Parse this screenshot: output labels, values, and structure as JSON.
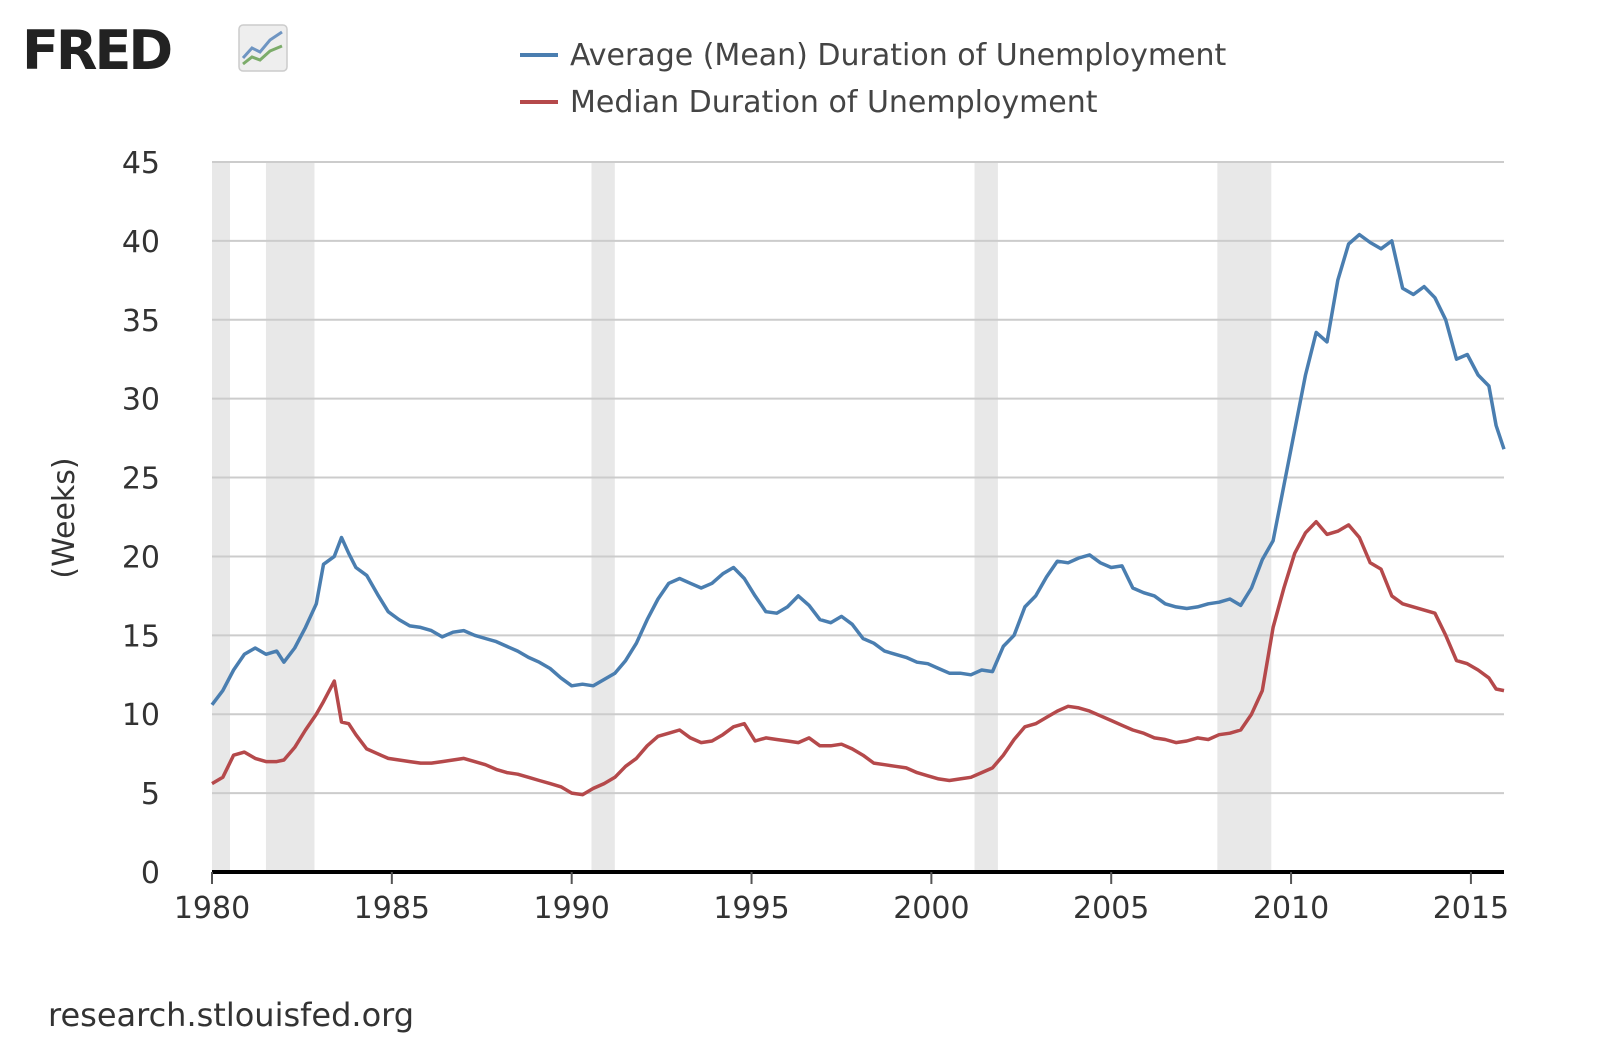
{
  "branding": {
    "logo_text": "FRED",
    "logo_icon": "line-chart-icon",
    "source_text": "research.stlouisfed.org"
  },
  "colors": {
    "mean": "#4a7eb0",
    "median": "#b5494b",
    "recession": "#e8e8e8",
    "grid": "#cccccc",
    "axis": "#000000"
  },
  "chart_data": {
    "type": "line",
    "xlabel": "",
    "ylabel": "(Weeks)",
    "xlim": [
      1980,
      2015.92
    ],
    "ylim": [
      0,
      45
    ],
    "x_ticks": [
      1980,
      1985,
      1990,
      1995,
      2000,
      2005,
      2010,
      2015
    ],
    "y_ticks": [
      0,
      5,
      10,
      15,
      20,
      25,
      30,
      35,
      40,
      45
    ],
    "grid": true,
    "legend_position": "top",
    "recessions": [
      [
        1980.0,
        1980.5
      ],
      [
        1981.5,
        1982.85
      ],
      [
        1990.55,
        1991.2
      ],
      [
        2001.2,
        2001.85
      ],
      [
        2007.95,
        2009.45
      ]
    ],
    "series": [
      {
        "name": "Average (Mean) Duration of Unemployment",
        "color": "#4a7eb0",
        "x": [
          1980.0,
          1980.3,
          1980.6,
          1980.9,
          1981.2,
          1981.5,
          1981.8,
          1982.0,
          1982.3,
          1982.6,
          1982.9,
          1983.1,
          1983.4,
          1983.6,
          1983.8,
          1984.0,
          1984.3,
          1984.6,
          1984.9,
          1985.2,
          1985.5,
          1985.8,
          1986.1,
          1986.4,
          1986.7,
          1987.0,
          1987.3,
          1987.6,
          1987.9,
          1988.2,
          1988.5,
          1988.8,
          1989.1,
          1989.4,
          1989.7,
          1990.0,
          1990.3,
          1990.6,
          1990.9,
          1991.2,
          1991.5,
          1991.8,
          1992.1,
          1992.4,
          1992.7,
          1993.0,
          1993.3,
          1993.6,
          1993.9,
          1994.2,
          1994.5,
          1994.8,
          1995.1,
          1995.4,
          1995.7,
          1996.0,
          1996.3,
          1996.6,
          1996.9,
          1997.2,
          1997.5,
          1997.8,
          1998.1,
          1998.4,
          1998.7,
          1999.0,
          1999.3,
          1999.6,
          1999.9,
          2000.2,
          2000.5,
          2000.8,
          2001.1,
          2001.4,
          2001.7,
          2002.0,
          2002.3,
          2002.6,
          2002.9,
          2003.2,
          2003.5,
          2003.8,
          2004.1,
          2004.4,
          2004.7,
          2005.0,
          2005.3,
          2005.6,
          2005.9,
          2006.2,
          2006.5,
          2006.8,
          2007.1,
          2007.4,
          2007.7,
          2008.0,
          2008.3,
          2008.6,
          2008.9,
          2009.2,
          2009.5,
          2009.8,
          2010.1,
          2010.4,
          2010.7,
          2011.0,
          2011.3,
          2011.6,
          2011.9,
          2012.2,
          2012.5,
          2012.8,
          2013.1,
          2013.4,
          2013.7,
          2014.0,
          2014.3,
          2014.6,
          2014.9,
          2015.2,
          2015.5,
          2015.7,
          2015.92
        ],
        "values": [
          10.6,
          11.5,
          12.8,
          13.8,
          14.2,
          13.8,
          14.0,
          13.3,
          14.2,
          15.5,
          17.0,
          19.5,
          20.0,
          21.2,
          20.2,
          19.3,
          18.8,
          17.6,
          16.5,
          16.0,
          15.6,
          15.5,
          15.3,
          14.9,
          15.2,
          15.3,
          15.0,
          14.8,
          14.6,
          14.3,
          14.0,
          13.6,
          13.3,
          12.9,
          12.3,
          11.8,
          11.9,
          11.8,
          12.2,
          12.6,
          13.4,
          14.5,
          16.0,
          17.3,
          18.3,
          18.6,
          18.3,
          18.0,
          18.3,
          18.9,
          19.3,
          18.6,
          17.5,
          16.5,
          16.4,
          16.8,
          17.5,
          16.9,
          16.0,
          15.8,
          16.2,
          15.7,
          14.8,
          14.5,
          14.0,
          13.8,
          13.6,
          13.3,
          13.2,
          12.9,
          12.6,
          12.6,
          12.5,
          12.8,
          12.7,
          14.3,
          15.0,
          16.8,
          17.5,
          18.7,
          19.7,
          19.6,
          19.9,
          20.1,
          19.6,
          19.3,
          19.4,
          18.0,
          17.7,
          17.5,
          17.0,
          16.8,
          16.7,
          16.8,
          17.0,
          17.1,
          17.3,
          16.9,
          18.0,
          19.8,
          21.0,
          24.5,
          28.0,
          31.5,
          34.2,
          33.6,
          37.5,
          39.8,
          40.4,
          39.9,
          39.5,
          40.0,
          37.0,
          36.6,
          37.1,
          36.4,
          35.0,
          32.5,
          32.8,
          31.5,
          30.8,
          28.3,
          26.8
        ]
      },
      {
        "name": "Median Duration of Unemployment",
        "color": "#b5494b",
        "x": [
          1980.0,
          1980.3,
          1980.6,
          1980.9,
          1981.2,
          1981.5,
          1981.8,
          1982.0,
          1982.3,
          1982.6,
          1982.9,
          1983.1,
          1983.4,
          1983.6,
          1983.8,
          1984.0,
          1984.3,
          1984.6,
          1984.9,
          1985.2,
          1985.5,
          1985.8,
          1986.1,
          1986.4,
          1986.7,
          1987.0,
          1987.3,
          1987.6,
          1987.9,
          1988.2,
          1988.5,
          1988.8,
          1989.1,
          1989.4,
          1989.7,
          1990.0,
          1990.3,
          1990.6,
          1990.9,
          1991.2,
          1991.5,
          1991.8,
          1992.1,
          1992.4,
          1992.7,
          1993.0,
          1993.3,
          1993.6,
          1993.9,
          1994.2,
          1994.5,
          1994.8,
          1995.1,
          1995.4,
          1995.7,
          1996.0,
          1996.3,
          1996.6,
          1996.9,
          1997.2,
          1997.5,
          1997.8,
          1998.1,
          1998.4,
          1998.7,
          1999.0,
          1999.3,
          1999.6,
          1999.9,
          2000.2,
          2000.5,
          2000.8,
          2001.1,
          2001.4,
          2001.7,
          2002.0,
          2002.3,
          2002.6,
          2002.9,
          2003.2,
          2003.5,
          2003.8,
          2004.1,
          2004.4,
          2004.7,
          2005.0,
          2005.3,
          2005.6,
          2005.9,
          2006.2,
          2006.5,
          2006.8,
          2007.1,
          2007.4,
          2007.7,
          2008.0,
          2008.3,
          2008.6,
          2008.9,
          2009.2,
          2009.5,
          2009.8,
          2010.1,
          2010.4,
          2010.7,
          2011.0,
          2011.3,
          2011.6,
          2011.9,
          2012.2,
          2012.5,
          2012.8,
          2013.1,
          2013.4,
          2013.7,
          2014.0,
          2014.3,
          2014.6,
          2014.9,
          2015.2,
          2015.5,
          2015.7,
          2015.92
        ],
        "values": [
          5.6,
          6.0,
          7.4,
          7.6,
          7.2,
          7.0,
          7.0,
          7.1,
          7.9,
          9.0,
          10.0,
          10.8,
          12.1,
          9.5,
          9.4,
          8.7,
          7.8,
          7.5,
          7.2,
          7.1,
          7.0,
          6.9,
          6.9,
          7.0,
          7.1,
          7.2,
          7.0,
          6.8,
          6.5,
          6.3,
          6.2,
          6.0,
          5.8,
          5.6,
          5.4,
          5.0,
          4.9,
          5.3,
          5.6,
          6.0,
          6.7,
          7.2,
          8.0,
          8.6,
          8.8,
          9.0,
          8.5,
          8.2,
          8.3,
          8.7,
          9.2,
          9.4,
          8.3,
          8.5,
          8.4,
          8.3,
          8.2,
          8.5,
          8.0,
          8.0,
          8.1,
          7.8,
          7.4,
          6.9,
          6.8,
          6.7,
          6.6,
          6.3,
          6.1,
          5.9,
          5.8,
          5.9,
          6.0,
          6.3,
          6.6,
          7.4,
          8.4,
          9.2,
          9.4,
          9.8,
          10.2,
          10.5,
          10.4,
          10.2,
          9.9,
          9.6,
          9.3,
          9.0,
          8.8,
          8.5,
          8.4,
          8.2,
          8.3,
          8.5,
          8.4,
          8.7,
          8.8,
          9.0,
          10.0,
          11.5,
          15.5,
          18.0,
          20.2,
          21.5,
          22.2,
          21.4,
          21.6,
          22.0,
          21.2,
          19.6,
          19.2,
          17.5,
          17.0,
          16.8,
          16.6,
          16.4,
          15.0,
          13.4,
          13.2,
          12.8,
          12.3,
          11.6,
          11.5
        ]
      }
    ]
  }
}
